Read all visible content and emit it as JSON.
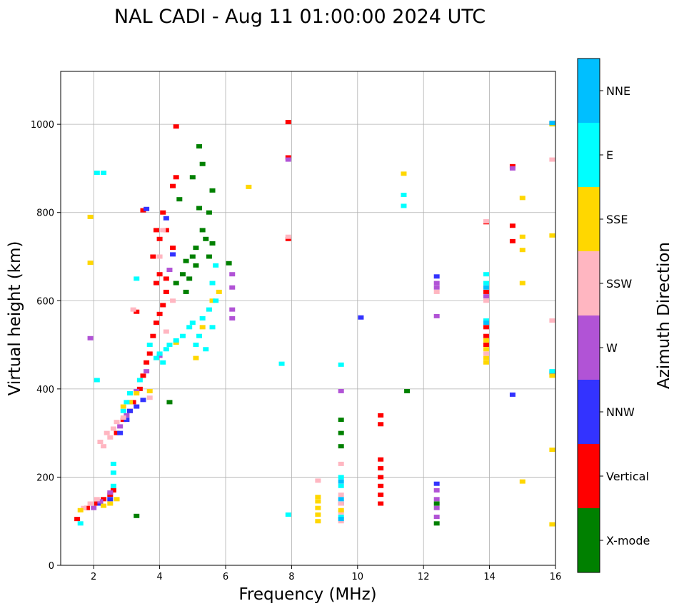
{
  "chart_data": {
    "type": "scatter",
    "title": "NAL CADI - Aug 11 01:00:00 2024 UTC",
    "xlabel": "Frequency (MHz)",
    "ylabel": "Virtual height (km)",
    "xlim": [
      1,
      16
    ],
    "ylim": [
      0,
      1120
    ],
    "xticks": [
      2,
      4,
      6,
      8,
      10,
      12,
      14,
      16
    ],
    "yticks": [
      0,
      200,
      400,
      600,
      800,
      1000
    ],
    "grid": true,
    "colorbar": {
      "label": "Azimuth Direction",
      "categories": [
        "X-mode",
        "Vertical",
        "NNW",
        "W",
        "SSW",
        "SSE",
        "E",
        "NNE"
      ],
      "colors": [
        "#008000",
        "#ff0000",
        "#3333ff",
        "#b153d6",
        "#ffb6c1",
        "#ffd700",
        "#00ffff",
        "#00bfff"
      ]
    },
    "series": [
      {
        "name": "X-mode",
        "points": [
          [
            3.3,
            112
          ],
          [
            4.3,
            370
          ],
          [
            4.5,
            640
          ],
          [
            4.7,
            660
          ],
          [
            4.8,
            690
          ],
          [
            4.9,
            650
          ],
          [
            5.0,
            700
          ],
          [
            5.1,
            720
          ],
          [
            5.2,
            810
          ],
          [
            5.3,
            760
          ],
          [
            5.4,
            740
          ],
          [
            5.5,
            800
          ],
          [
            5.6,
            850
          ],
          [
            5.0,
            880
          ],
          [
            5.2,
            950
          ],
          [
            5.3,
            910
          ],
          [
            5.6,
            730
          ],
          [
            4.8,
            620
          ],
          [
            5.1,
            680
          ],
          [
            6.1,
            685
          ],
          [
            9.5,
            330
          ],
          [
            9.5,
            300
          ],
          [
            9.5,
            270
          ],
          [
            12.4,
            140
          ],
          [
            12.4,
            95
          ],
          [
            11.5,
            395
          ],
          [
            4.6,
            830
          ],
          [
            5.5,
            700
          ]
        ]
      },
      {
        "name": "Vertical",
        "points": [
          [
            1.5,
            105
          ],
          [
            1.8,
            130
          ],
          [
            2.1,
            140
          ],
          [
            2.3,
            150
          ],
          [
            2.5,
            160
          ],
          [
            2.6,
            170
          ],
          [
            2.7,
            300
          ],
          [
            2.9,
            330
          ],
          [
            3.1,
            350
          ],
          [
            3.2,
            370
          ],
          [
            3.4,
            400
          ],
          [
            3.5,
            430
          ],
          [
            3.6,
            460
          ],
          [
            3.7,
            480
          ],
          [
            3.8,
            520
          ],
          [
            3.9,
            550
          ],
          [
            4.0,
            570
          ],
          [
            4.1,
            590
          ],
          [
            4.2,
            620
          ],
          [
            3.9,
            640
          ],
          [
            4.0,
            660
          ],
          [
            3.8,
            700
          ],
          [
            3.9,
            760
          ],
          [
            4.1,
            800
          ],
          [
            4.4,
            860
          ],
          [
            4.5,
            880
          ],
          [
            4.5,
            995
          ],
          [
            3.5,
            805
          ],
          [
            7.9,
            1005
          ],
          [
            7.9,
            925
          ],
          [
            7.9,
            740
          ],
          [
            10.7,
            340
          ],
          [
            10.7,
            320
          ],
          [
            10.7,
            240
          ],
          [
            10.7,
            220
          ],
          [
            10.7,
            200
          ],
          [
            10.7,
            180
          ],
          [
            10.7,
            160
          ],
          [
            10.7,
            140
          ],
          [
            13.9,
            620
          ],
          [
            13.9,
            540
          ],
          [
            13.9,
            520
          ],
          [
            13.9,
            500
          ],
          [
            14.7,
            905
          ],
          [
            14.7,
            770
          ],
          [
            14.7,
            735
          ],
          [
            13.9,
            778
          ],
          [
            4.2,
            760
          ],
          [
            4.4,
            720
          ],
          [
            4.0,
            740
          ],
          [
            3.3,
            575
          ],
          [
            4.2,
            650
          ]
        ]
      },
      {
        "name": "NNW",
        "points": [
          [
            2.2,
            140
          ],
          [
            2.5,
            150
          ],
          [
            2.8,
            300
          ],
          [
            3.0,
            330
          ],
          [
            3.1,
            350
          ],
          [
            3.3,
            360
          ],
          [
            3.5,
            375
          ],
          [
            3.6,
            808
          ],
          [
            4.2,
            787
          ],
          [
            10.1,
            562
          ],
          [
            14.7,
            387
          ],
          [
            15.9,
            437
          ],
          [
            12.4,
            655
          ],
          [
            12.4,
            185
          ],
          [
            9.5,
            140
          ],
          [
            4.4,
            705
          ]
        ]
      },
      {
        "name": "W",
        "points": [
          [
            1.9,
            515
          ],
          [
            2.0,
            130
          ],
          [
            2.2,
            145
          ],
          [
            2.5,
            165
          ],
          [
            2.8,
            315
          ],
          [
            3.0,
            340
          ],
          [
            3.1,
            370
          ],
          [
            3.3,
            395
          ],
          [
            3.6,
            440
          ],
          [
            4.0,
            475
          ],
          [
            4.3,
            670
          ],
          [
            6.2,
            660
          ],
          [
            6.2,
            630
          ],
          [
            6.2,
            580
          ],
          [
            6.2,
            560
          ],
          [
            7.9,
            920
          ],
          [
            12.4,
            170
          ],
          [
            12.4,
            150
          ],
          [
            12.4,
            130
          ],
          [
            12.4,
            110
          ],
          [
            12.4,
            640
          ],
          [
            12.4,
            630
          ],
          [
            12.4,
            565
          ],
          [
            14.7,
            900
          ],
          [
            15.9,
            1003
          ],
          [
            13.9,
            610
          ],
          [
            9.5,
            395
          ]
        ]
      },
      {
        "name": "SSW",
        "points": [
          [
            1.7,
            130
          ],
          [
            1.9,
            140
          ],
          [
            2.1,
            150
          ],
          [
            2.2,
            280
          ],
          [
            2.3,
            270
          ],
          [
            2.4,
            300
          ],
          [
            2.5,
            290
          ],
          [
            2.6,
            310
          ],
          [
            2.7,
            325
          ],
          [
            2.9,
            335
          ],
          [
            3.2,
            580
          ],
          [
            3.7,
            380
          ],
          [
            4.1,
            760
          ],
          [
            4.4,
            600
          ],
          [
            8.8,
            192
          ],
          [
            9.5,
            100
          ],
          [
            9.5,
            120
          ],
          [
            9.5,
            140
          ],
          [
            9.5,
            160
          ],
          [
            9.5,
            230
          ],
          [
            13.9,
            780
          ],
          [
            13.9,
            480
          ],
          [
            13.9,
            600
          ],
          [
            15.9,
            920
          ],
          [
            15.9,
            555
          ],
          [
            7.9,
            745
          ],
          [
            4.0,
            700
          ],
          [
            4.2,
            530
          ],
          [
            12.4,
            620
          ]
        ]
      },
      {
        "name": "SSE",
        "points": [
          [
            1.6,
            125
          ],
          [
            1.9,
            790
          ],
          [
            1.9,
            686
          ],
          [
            2.3,
            135
          ],
          [
            2.5,
            140
          ],
          [
            2.7,
            150
          ],
          [
            2.9,
            360
          ],
          [
            3.1,
            370
          ],
          [
            3.3,
            390
          ],
          [
            3.7,
            395
          ],
          [
            4.5,
            505
          ],
          [
            5.1,
            470
          ],
          [
            5.3,
            540
          ],
          [
            5.6,
            600
          ],
          [
            5.8,
            620
          ],
          [
            6.7,
            858
          ],
          [
            8.8,
            100
          ],
          [
            8.8,
            115
          ],
          [
            8.8,
            130
          ],
          [
            8.8,
            145
          ],
          [
            8.8,
            155
          ],
          [
            9.5,
            125
          ],
          [
            11.4,
            888
          ],
          [
            13.9,
            460
          ],
          [
            13.9,
            470
          ],
          [
            13.9,
            490
          ],
          [
            13.9,
            510
          ],
          [
            15.0,
            833
          ],
          [
            15.0,
            745
          ],
          [
            15.0,
            715
          ],
          [
            15.0,
            640
          ],
          [
            15.0,
            190
          ],
          [
            15.9,
            748
          ],
          [
            15.9,
            430
          ],
          [
            15.9,
            262
          ],
          [
            15.9,
            93
          ],
          [
            15.9,
            1000
          ]
        ]
      },
      {
        "name": "E",
        "points": [
          [
            1.6,
            95
          ],
          [
            2.1,
            420
          ],
          [
            2.1,
            890
          ],
          [
            2.6,
            180
          ],
          [
            2.6,
            210
          ],
          [
            2.6,
            230
          ],
          [
            2.9,
            350
          ],
          [
            3.0,
            370
          ],
          [
            3.1,
            390
          ],
          [
            3.3,
            650
          ],
          [
            3.4,
            420
          ],
          [
            3.7,
            500
          ],
          [
            3.9,
            470
          ],
          [
            4.0,
            480
          ],
          [
            4.1,
            460
          ],
          [
            4.2,
            490
          ],
          [
            4.3,
            500
          ],
          [
            4.5,
            510
          ],
          [
            4.7,
            520
          ],
          [
            4.9,
            540
          ],
          [
            5.0,
            550
          ],
          [
            5.1,
            500
          ],
          [
            5.2,
            520
          ],
          [
            5.3,
            560
          ],
          [
            5.4,
            490
          ],
          [
            5.5,
            580
          ],
          [
            5.6,
            540
          ],
          [
            5.7,
            600
          ],
          [
            5.6,
            640
          ],
          [
            5.7,
            680
          ],
          [
            7.7,
            457
          ],
          [
            7.9,
            115
          ],
          [
            9.5,
            455
          ],
          [
            9.5,
            200
          ],
          [
            9.5,
            180
          ],
          [
            9.5,
            110
          ],
          [
            11.4,
            840
          ],
          [
            11.4,
            815
          ],
          [
            13.9,
            660
          ],
          [
            13.9,
            640
          ],
          [
            13.9,
            555
          ],
          [
            15.9,
            440
          ],
          [
            2.3,
            890
          ]
        ]
      },
      {
        "name": "NNE",
        "points": [
          [
            9.5,
            190
          ],
          [
            9.5,
            150
          ],
          [
            9.5,
            105
          ],
          [
            13.9,
            630
          ],
          [
            13.9,
            550
          ],
          [
            15.9,
            1003
          ]
        ]
      }
    ]
  }
}
